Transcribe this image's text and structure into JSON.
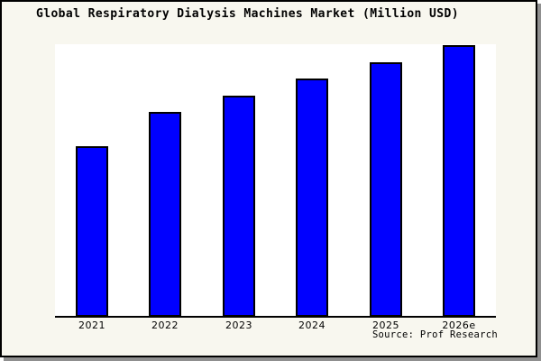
{
  "chart_data": {
    "type": "bar",
    "title": "Global Respiratory Dialysis Machines Market (Million USD)",
    "categories": [
      "2021",
      "2022",
      "2023",
      "2024",
      "2025",
      "2026e"
    ],
    "values": [
      62.5,
      75,
      81,
      87.5,
      93.5,
      99.7
    ],
    "xlabel": "",
    "ylabel": "",
    "ylim": [
      0,
      100
    ],
    "grid": false,
    "legend_position": "none",
    "bar_color": "#0000ff",
    "bar_edge_color": "#000000",
    "plot_bg": "#ffffff",
    "outer_bg": "#f8f7ef"
  },
  "footer": {
    "source": "Source: Prof Research"
  }
}
